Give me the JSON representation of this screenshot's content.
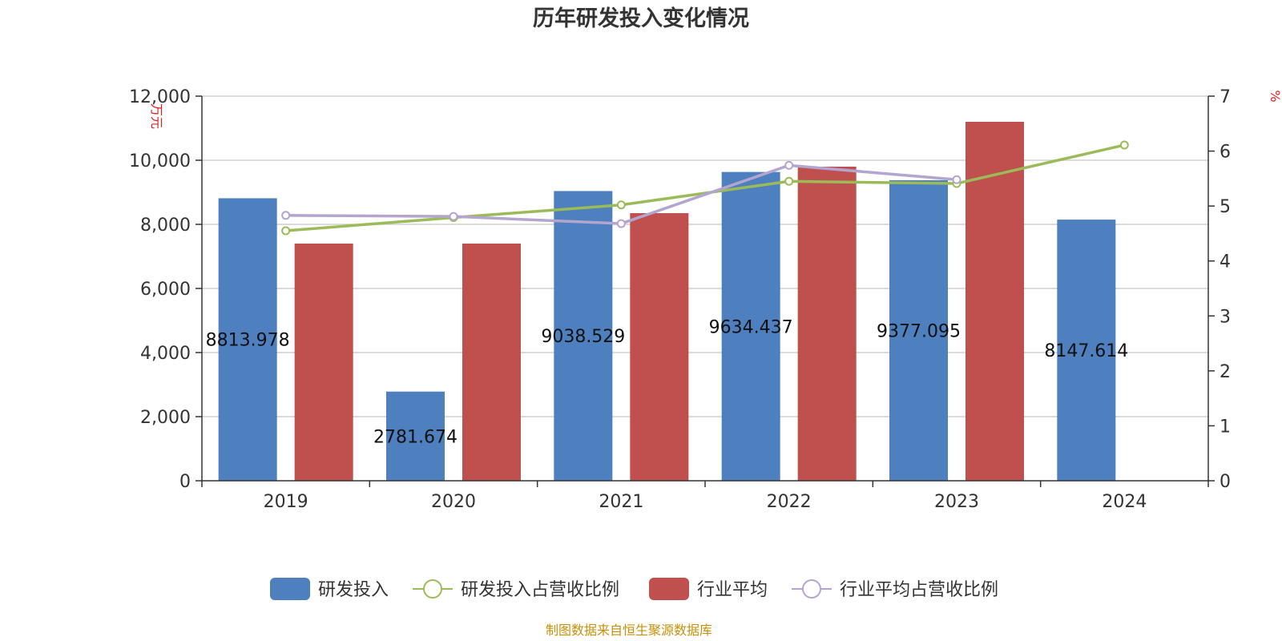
{
  "chart_data": {
    "type": "bar",
    "title": "历年研发投入变化情况",
    "categories": [
      "2019",
      "2020",
      "2021",
      "2022",
      "2023",
      "2024"
    ],
    "ylabel_left": "万元",
    "ylabel_right": "%",
    "ylim_left": [
      0,
      12000
    ],
    "yticks_left": [
      "0",
      "2,000",
      "4,000",
      "6,000",
      "8,000",
      "10,000",
      "12,000"
    ],
    "ylim_right": [
      0,
      7
    ],
    "yticks_right": [
      "0",
      "1",
      "2",
      "3",
      "4",
      "5",
      "6",
      "7"
    ],
    "grid": true,
    "series": [
      {
        "name": "研发投入",
        "kind": "bar",
        "axis": "left",
        "color": "#4e7fbf",
        "values": [
          8813.978,
          2781.674,
          9038.529,
          9634.437,
          9377.095,
          8147.614
        ],
        "labels": [
          "8813.978",
          "2781.674",
          "9038.529",
          "9634.437",
          "9377.095",
          "8147.614"
        ]
      },
      {
        "name": "研发投入占营收比例",
        "kind": "line",
        "axis": "right",
        "color": "#9bbb59",
        "values": [
          4.55,
          4.79,
          5.02,
          5.45,
          5.41,
          6.11
        ]
      },
      {
        "name": "行业平均",
        "kind": "bar",
        "axis": "left",
        "color": "#c0504d",
        "values": [
          7400,
          7400,
          8350,
          9800,
          11200,
          null
        ]
      },
      {
        "name": "行业平均占营收比例",
        "kind": "line",
        "axis": "right",
        "color": "#b3a5cf",
        "values": [
          4.83,
          4.81,
          4.68,
          5.74,
          5.48,
          null
        ]
      }
    ],
    "legend_position": "bottom-center"
  },
  "source": "制图数据来自恒生聚源数据库"
}
